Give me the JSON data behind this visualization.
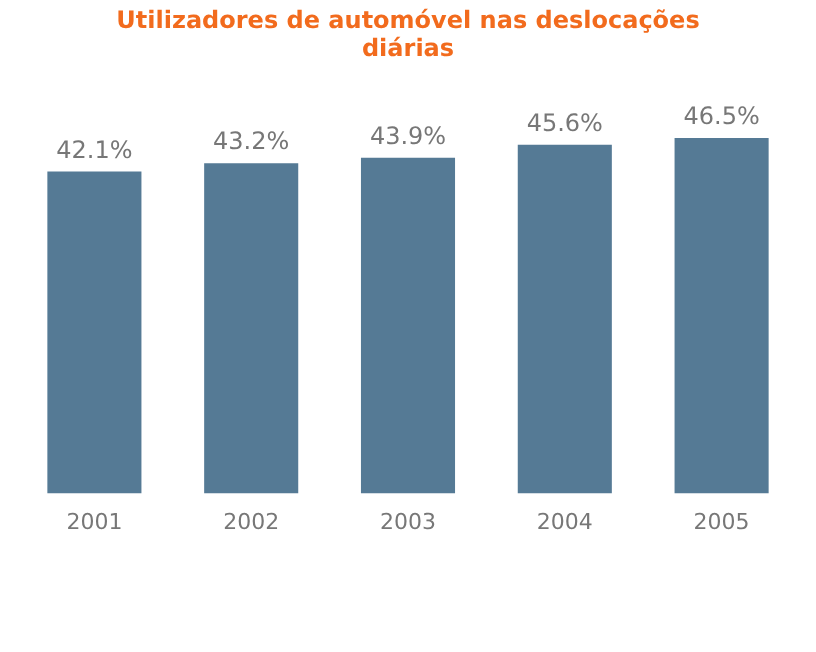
{
  "chart_data": {
    "type": "bar",
    "title": "Utilizadores de automóvel nas deslocações diárias",
    "categories": [
      "2001",
      "2002",
      "2003",
      "2004",
      "2005"
    ],
    "values": [
      42.1,
      43.2,
      43.9,
      45.6,
      46.5
    ],
    "value_labels": [
      "42.1%",
      "43.2%",
      "43.9%",
      "45.6%",
      "46.5%"
    ],
    "color": "#557a95",
    "grid": false,
    "legend": false
  }
}
